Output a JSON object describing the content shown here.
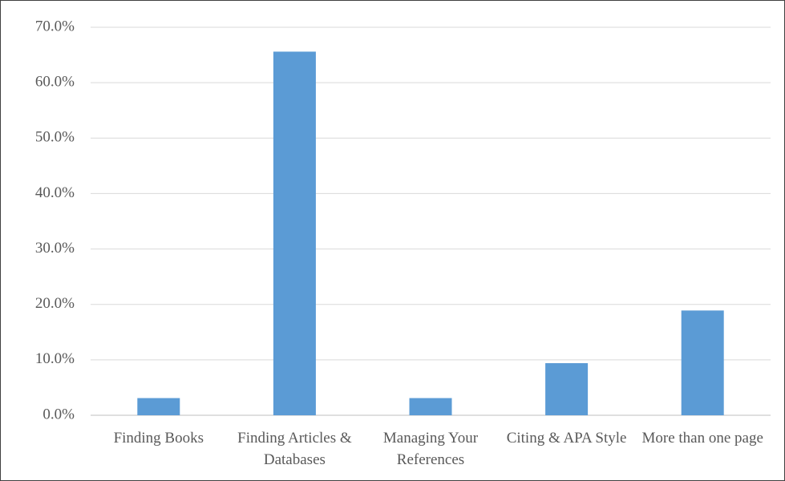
{
  "chart_data": {
    "type": "bar",
    "categories": [
      "Finding Books",
      "Finding Articles & Databases",
      "Managing Your References",
      "Citing & APA Style",
      "More than one page"
    ],
    "values": [
      3.1,
      65.6,
      3.1,
      9.4,
      18.9
    ],
    "color": "#5b9bd5",
    "ylim": [
      0,
      70
    ],
    "yticks": [
      {
        "value": 0,
        "label": "0.0%"
      },
      {
        "value": 10,
        "label": "10.0%"
      },
      {
        "value": 20,
        "label": "20.0%"
      },
      {
        "value": 30,
        "label": "30.0%"
      },
      {
        "value": 40,
        "label": "40.0%"
      },
      {
        "value": 50,
        "label": "50.0%"
      },
      {
        "value": 60,
        "label": "60.0%"
      },
      {
        "value": 70,
        "label": "70.0%"
      }
    ],
    "grid": true
  }
}
